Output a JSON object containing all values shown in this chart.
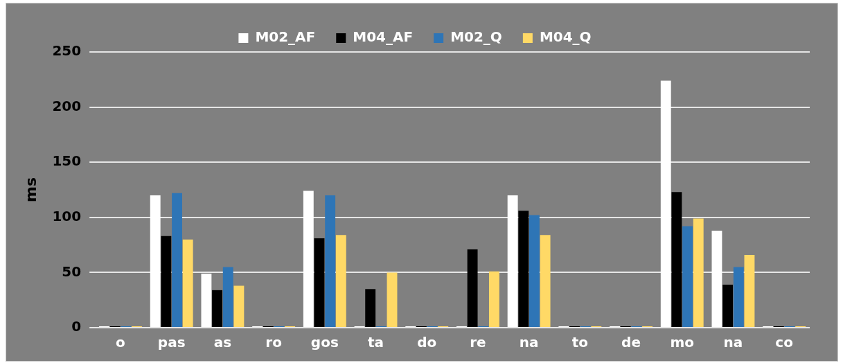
{
  "chart_data": {
    "type": "bar",
    "ylabel": "ms",
    "categories": [
      "o",
      "pas",
      "as",
      "ro",
      "gos",
      "ta",
      "do",
      "re",
      "na",
      "to",
      "de",
      "mo",
      "na",
      "co"
    ],
    "series": [
      {
        "name": "M02_AF",
        "color": "#ffffff",
        "values": [
          0,
          120,
          49,
          0,
          124,
          0,
          0,
          0,
          120,
          0,
          0,
          224,
          88,
          0
        ]
      },
      {
        "name": "M04_AF",
        "color": "#000000",
        "values": [
          0,
          83,
          34,
          0,
          81,
          35,
          0,
          71,
          106,
          0,
          0,
          123,
          39,
          0
        ]
      },
      {
        "name": "M02_Q",
        "color": "#2e75b6",
        "values": [
          0,
          122,
          55,
          0,
          120,
          0,
          0,
          0,
          102,
          0,
          0,
          92,
          55,
          0
        ]
      },
      {
        "name": "M04_Q",
        "color": "#ffd966",
        "values": [
          0,
          80,
          38,
          0,
          84,
          50,
          0,
          51,
          84,
          0,
          0,
          99,
          66,
          0
        ]
      }
    ],
    "ylim": [
      0,
      250
    ],
    "yticks": [
      0,
      50,
      100,
      150,
      200,
      250
    ],
    "grid": "y",
    "legend": "top"
  }
}
